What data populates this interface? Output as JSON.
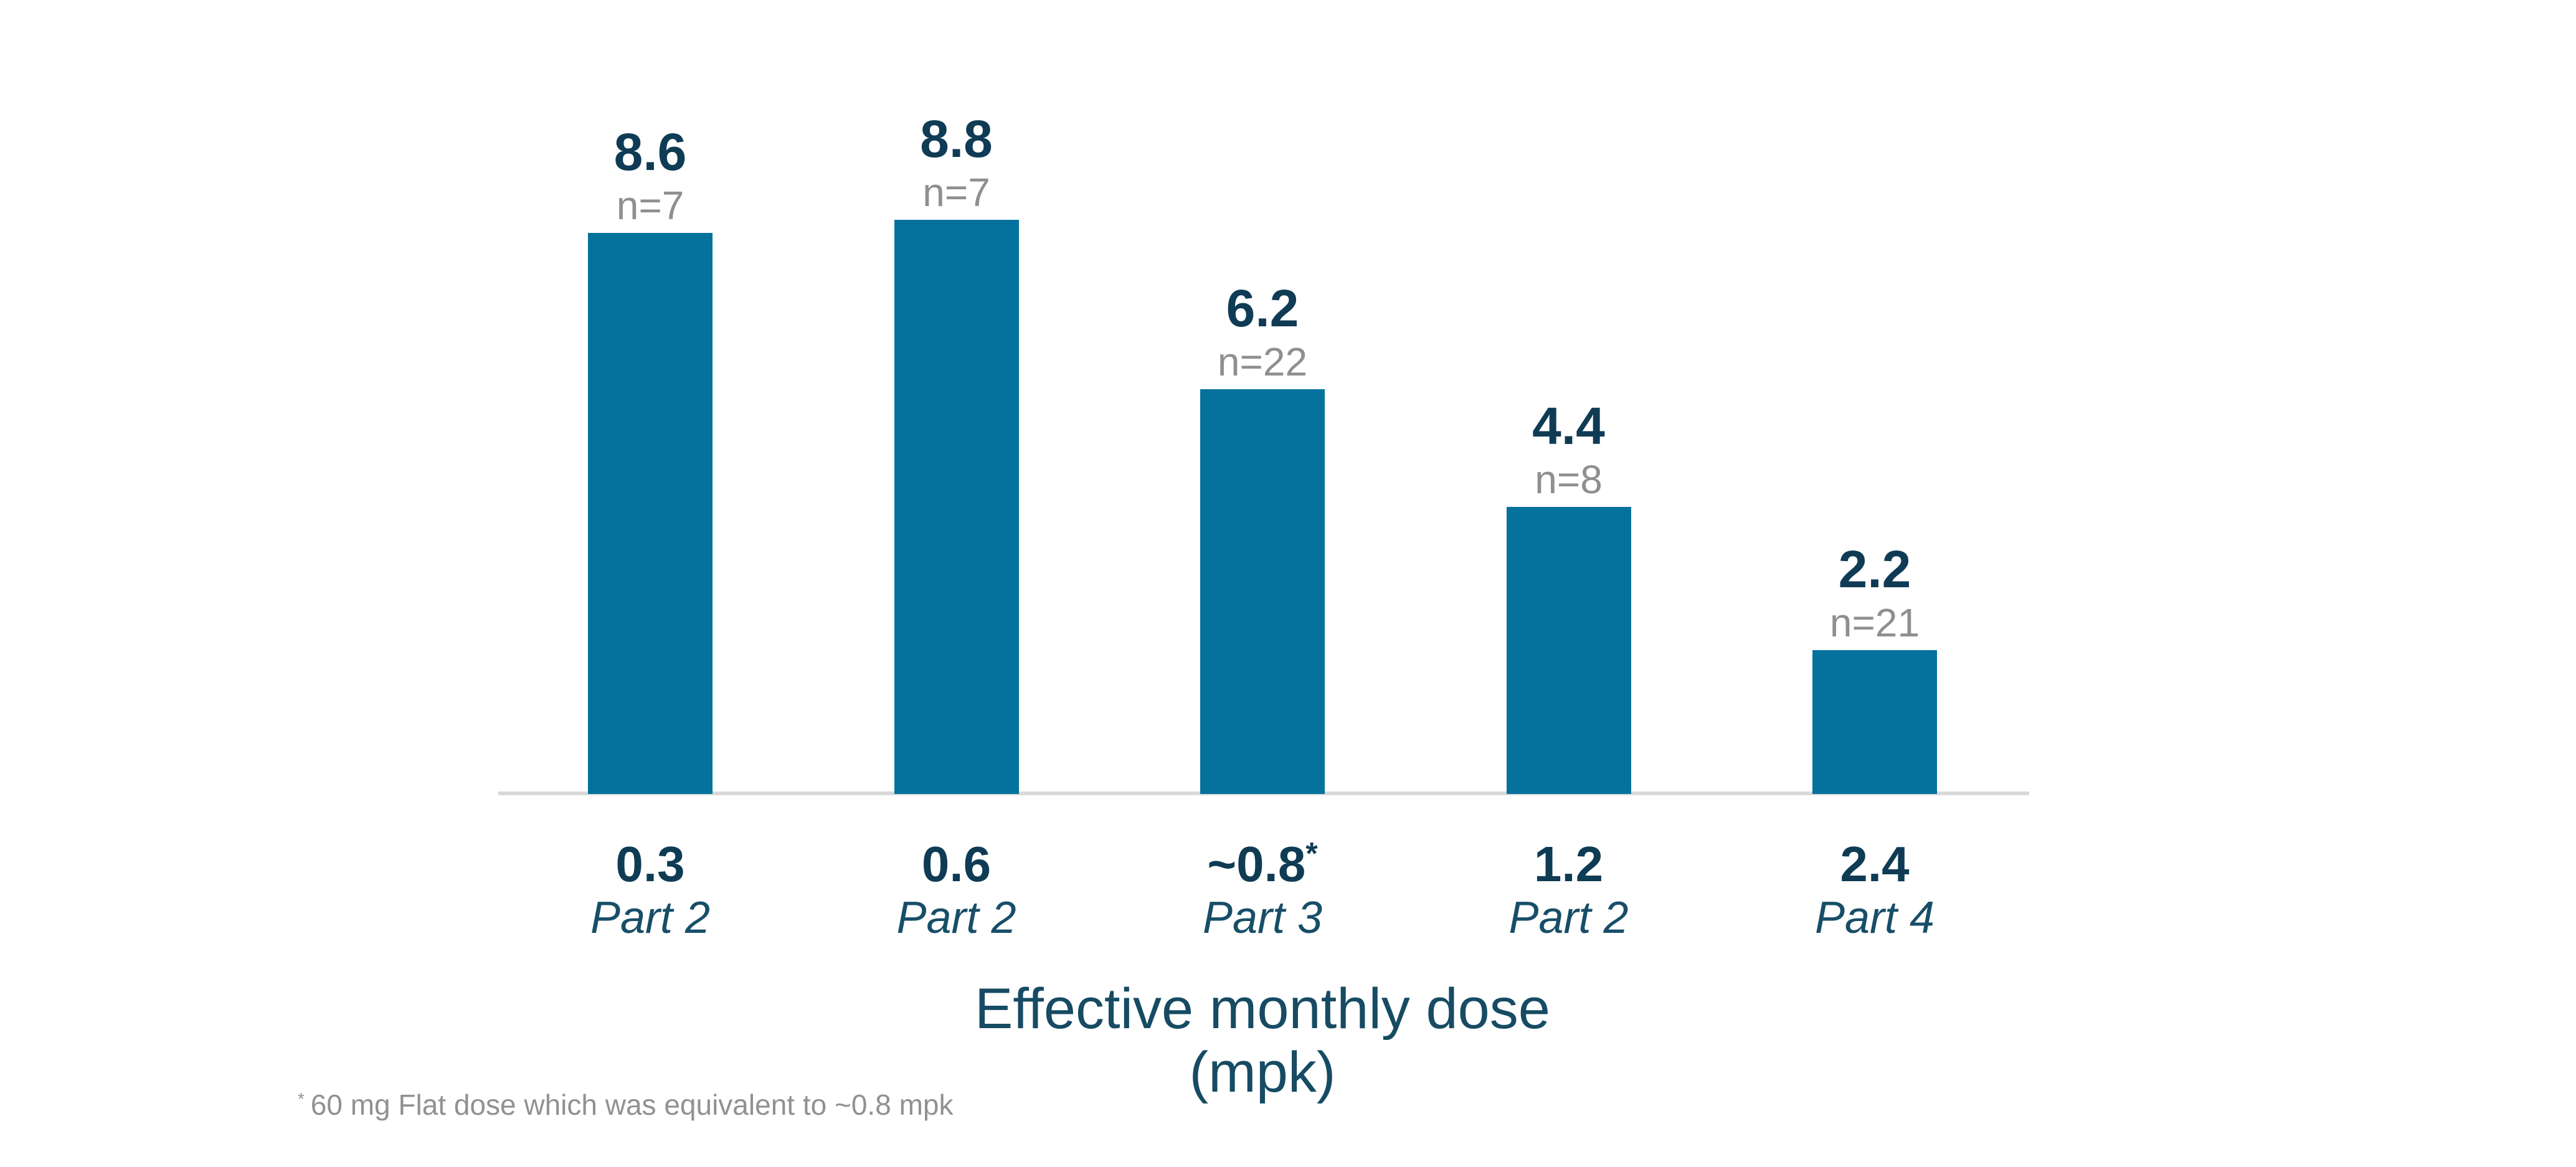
{
  "chart_data": {
    "type": "bar",
    "title": "",
    "xlabel_lines": [
      "Effective monthly dose",
      "(mpk)"
    ],
    "xlabel": "Effective monthly dose (mpk)",
    "categories": [
      "0.3",
      "0.6",
      "~0.8",
      "1.2",
      "2.4"
    ],
    "category_superscripts": [
      "",
      "",
      "*",
      "",
      ""
    ],
    "part_labels": [
      "Part 2",
      "Part 2",
      "Part 3",
      "Part 2",
      "Part 4"
    ],
    "values": [
      8.6,
      8.8,
      6.2,
      4.4,
      2.2
    ],
    "value_labels": [
      "8.6",
      "8.8",
      "6.2",
      "4.4",
      "2.2"
    ],
    "n_labels": [
      "n=7",
      "n=7",
      "n=22",
      "n=8",
      "n=21"
    ],
    "ylim": [
      0,
      10
    ],
    "grid": false,
    "legend": "none",
    "bar_color": "#04729d"
  },
  "footnote": {
    "marker": "*",
    "text": "60 mg Flat dose which was equivalent to ~0.8 mpk"
  },
  "colors": {
    "background": "#ffffff",
    "bar": "#04729d",
    "value_label": "#0f3b54",
    "n_label": "#8f8f8f",
    "part_label": "#174e68",
    "axis_title": "#164b63",
    "axis_line": "#d9d9d9",
    "footnote": "#919191"
  }
}
